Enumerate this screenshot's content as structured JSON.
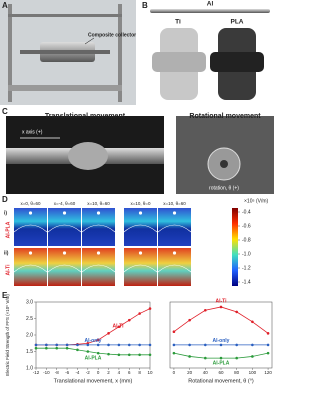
{
  "panels": {
    "a": {
      "label": "A",
      "annotation": "Composite collector"
    },
    "b": {
      "label": "B",
      "rod": "Al",
      "left": "Ti",
      "right": "PLA"
    },
    "c": {
      "label": "C",
      "left_title": "Translational movement",
      "right_title": "Rotational movement",
      "x_axis": "x axis (+)",
      "rotation": "rotation, θ (+)"
    },
    "d": {
      "label": "D",
      "columns": [
        "x=0, θ=60",
        "x=-4, θ=60",
        "x=10, θ=60",
        "x=10, θ=0",
        "x=10, θ=60"
      ],
      "rows": [
        {
          "index": "i)",
          "name": "Al-PLA"
        },
        {
          "index": "ii)",
          "name": "Al-Ti"
        }
      ],
      "colorbar_unit": "×10⁵ (V/m)",
      "colorbar_ticks": [
        -0.4,
        -0.6,
        -0.8,
        {
          "value": -1.0,
          "label": "-1.0"
        },
        -1.2,
        -1.4
      ]
    },
    "e": {
      "label": "E",
      "ylabel": "Electric Field Strength of FFS (×10⁵ V/m)"
    }
  },
  "chart_data": [
    {
      "type": "line",
      "xlabel": "Translational movement, x (mm)",
      "x": [
        -12,
        -10,
        -8,
        -6,
        -4,
        -2,
        0,
        2,
        4,
        6,
        8,
        10
      ],
      "xlim": [
        -12,
        10
      ],
      "xticks": [
        -12,
        -10,
        -8,
        -6,
        -4,
        -2,
        0,
        2,
        4,
        6,
        8,
        10
      ],
      "ylim": [
        1.0,
        3.0
      ],
      "yticks": [
        {
          "value": 1.0,
          "label": "1.0"
        },
        1.5,
        {
          "value": 2.0,
          "label": "2.0"
        },
        2.5,
        {
          "value": 3.0,
          "label": "3.0"
        }
      ],
      "series": [
        {
          "name": "Al-Ti",
          "color": "#e0202a",
          "values": [
            1.7,
            1.7,
            1.7,
            1.7,
            1.72,
            1.75,
            1.85,
            2.05,
            2.25,
            2.45,
            2.65,
            2.8
          ]
        },
        {
          "name": "Al-only",
          "color": "#2a5fc0",
          "values": [
            1.7,
            1.7,
            1.7,
            1.7,
            1.7,
            1.7,
            1.7,
            1.7,
            1.7,
            1.7,
            1.7,
            1.7
          ]
        },
        {
          "name": "Al-PLA",
          "color": "#2a9a3a",
          "values": [
            1.6,
            1.6,
            1.6,
            1.6,
            1.55,
            1.5,
            1.45,
            1.42,
            1.4,
            1.4,
            1.4,
            1.4
          ]
        }
      ]
    },
    {
      "type": "line",
      "xlabel": "Rotational movement, θ (°)",
      "x": [
        0,
        20,
        40,
        60,
        80,
        100,
        120
      ],
      "xlim": [
        -5,
        125
      ],
      "xticks": [
        0,
        20,
        40,
        60,
        80,
        100,
        120
      ],
      "ylim": [
        1.0,
        3.0
      ],
      "series": [
        {
          "name": "Al-Ti",
          "color": "#e0202a",
          "values": [
            2.1,
            2.45,
            2.75,
            2.85,
            2.7,
            2.4,
            2.05
          ]
        },
        {
          "name": "Al-only",
          "color": "#2a5fc0",
          "values": [
            1.7,
            1.7,
            1.7,
            1.7,
            1.7,
            1.7,
            1.7
          ]
        },
        {
          "name": "Al-PLA",
          "color": "#2a9a3a",
          "values": [
            1.45,
            1.35,
            1.3,
            1.3,
            1.3,
            1.35,
            1.45
          ]
        }
      ]
    }
  ]
}
